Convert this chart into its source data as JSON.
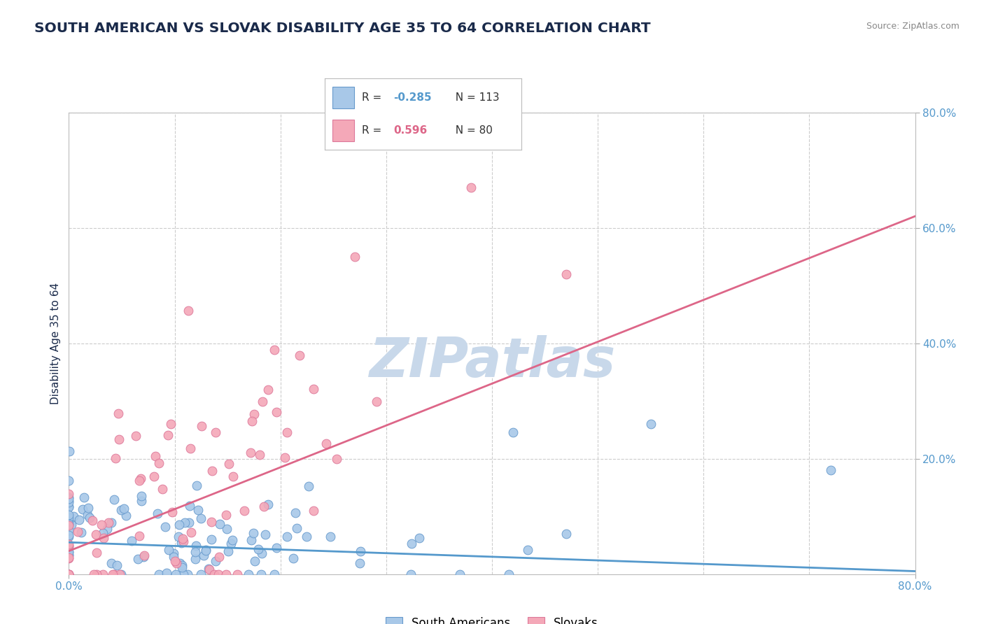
{
  "title": "SOUTH AMERICAN VS SLOVAK DISABILITY AGE 35 TO 64 CORRELATION CHART",
  "source": "Source: ZipAtlas.com",
  "ylabel": "Disability Age 35 to 64",
  "x_min": 0.0,
  "x_max": 0.8,
  "y_min": 0.0,
  "y_max": 0.8,
  "sa_color": "#a8c8e8",
  "sa_edge_color": "#6699cc",
  "sk_color": "#f4a8b8",
  "sk_edge_color": "#dd7799",
  "sa_R": -0.285,
  "sa_N": 113,
  "sk_R": 0.596,
  "sk_N": 80,
  "trend_sa_color": "#5599cc",
  "trend_sk_color": "#dd6688",
  "legend_sa_label": "South Americans",
  "legend_sk_label": "Slovaks",
  "watermark": "ZIPatlas",
  "watermark_color": "#c8d8ea",
  "background_color": "#ffffff",
  "grid_color": "#cccccc",
  "title_color": "#1a2a4a",
  "tick_label_color": "#5599cc",
  "source_color": "#888888",
  "title_fontsize": 14.5,
  "axis_label_fontsize": 11,
  "tick_label_fontsize": 11,
  "legend_fontsize": 12,
  "sa_trend_start_x": 0.0,
  "sa_trend_start_y": 0.055,
  "sa_trend_end_x": 0.8,
  "sa_trend_end_y": 0.005,
  "sk_trend_start_x": 0.0,
  "sk_trend_start_y": 0.04,
  "sk_trend_end_x": 0.8,
  "sk_trend_end_y": 0.62
}
